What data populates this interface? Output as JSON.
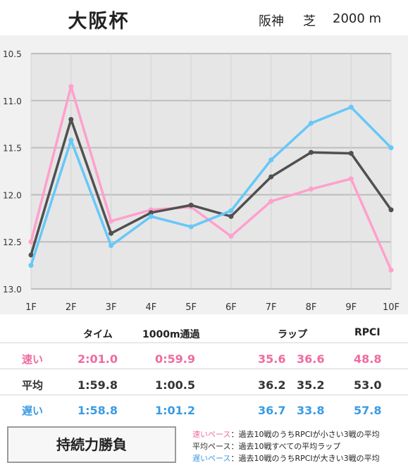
{
  "header": {
    "race": "大阪杯",
    "track": "阪神",
    "surface": "芝",
    "distance": "2000 m"
  },
  "chart_data": {
    "type": "line",
    "categories": [
      "1F",
      "2F",
      "3F",
      "4F",
      "5F",
      "6F",
      "7F",
      "8F",
      "9F",
      "10F"
    ],
    "ylim": [
      13.0,
      10.5
    ],
    "y_ticks": [
      "10.5",
      "11.0",
      "11.5",
      "12.0",
      "12.5",
      "13.0"
    ],
    "grid": true,
    "series": [
      {
        "key": "fast",
        "color": "#ffa0cc",
        "values": [
          12.5,
          10.85,
          12.28,
          12.16,
          12.13,
          12.44,
          12.07,
          11.94,
          11.83,
          12.8
        ]
      },
      {
        "key": "avg",
        "color": "#505050",
        "values": [
          12.64,
          11.2,
          12.41,
          12.19,
          12.11,
          12.23,
          11.81,
          11.55,
          11.56,
          12.16
        ]
      },
      {
        "key": "slow",
        "color": "#66c8f8",
        "values": [
          12.75,
          11.42,
          12.54,
          12.23,
          12.34,
          12.17,
          11.63,
          11.24,
          11.07,
          11.5
        ]
      }
    ]
  },
  "stats": {
    "headers": {
      "time": "タイム",
      "pass1000": "1000m通過",
      "lap": "ラップ",
      "rpci": "RPCI"
    },
    "rows": [
      {
        "label": "速い",
        "time": "2:01.0",
        "pass1000": "0:59.9",
        "lap1": "35.6",
        "lap2": "36.6",
        "rpci": "48.8"
      },
      {
        "label": "平均",
        "time": "1:59.8",
        "pass1000": "1:00.5",
        "lap1": "36.2",
        "lap2": "35.2",
        "rpci": "53.0"
      },
      {
        "label": "遅い",
        "time": "1:58.8",
        "pass1000": "1:01.2",
        "lap1": "36.7",
        "lap2": "33.8",
        "rpci": "57.8"
      }
    ]
  },
  "conclusion": "持続力勝負",
  "legend": [
    {
      "term": "速いペース",
      "desc": "：過去10戦のうちRPCIが小さい3戦の平均"
    },
    {
      "term": "平均ペース",
      "desc": "：過去10戦すべての平均ラップ"
    },
    {
      "term": "遅いペース",
      "desc": "：過去10戦のうちRPCIが大きい3戦の平均"
    }
  ]
}
